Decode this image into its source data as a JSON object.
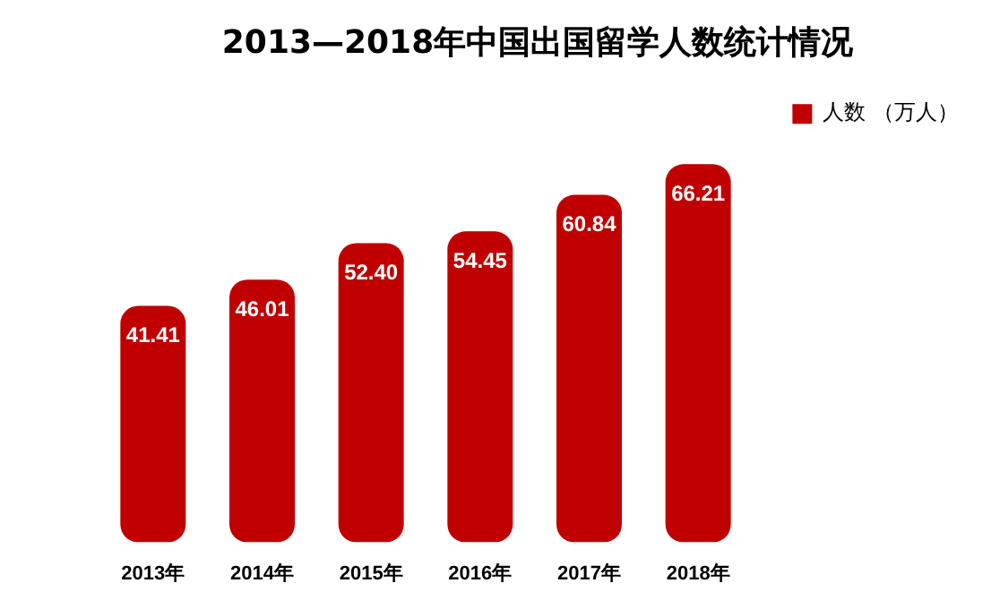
{
  "chart_data": {
    "type": "bar",
    "title": "2013—2018年中国出国留学人数统计情况",
    "categories": [
      "2013年",
      "2014年",
      "2015年",
      "2016年",
      "2017年",
      "2018年"
    ],
    "series": [
      {
        "name": "人数 （万人）",
        "color": "#c00000",
        "values": [
          41.41,
          46.01,
          52.4,
          54.45,
          60.84,
          66.21
        ],
        "value_labels": [
          "41.41",
          "46.01",
          "52.40",
          "54.45",
          "60.84",
          "66.21"
        ]
      }
    ],
    "grid": false,
    "legend": "top right"
  }
}
